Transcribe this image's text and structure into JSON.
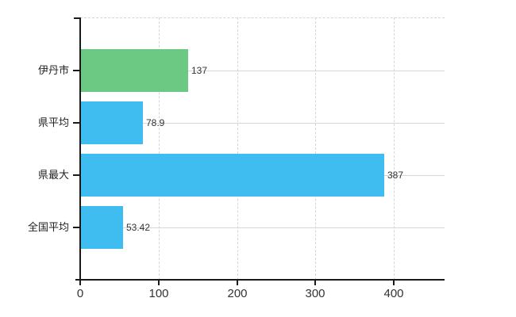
{
  "chart_data": {
    "type": "bar",
    "orientation": "horizontal",
    "title": "",
    "categories": [
      "伊丹市",
      "県平均",
      "県最大",
      "全国平均"
    ],
    "values": [
      137,
      78.9,
      387,
      53.42
    ],
    "value_labels": [
      "137",
      "78.9",
      "387",
      "53.42"
    ],
    "bar_colors": [
      "#6cc983",
      "#40bdf0",
      "#40bdf0",
      "#40bdf0"
    ],
    "x_axis": {
      "ticks": [
        0,
        100,
        200,
        300,
        400
      ],
      "tick_labels": [
        "0",
        "100",
        "200",
        "300",
        "400"
      ],
      "range": [
        0,
        464
      ]
    },
    "xlabel": "",
    "ylabel": "",
    "legend": false,
    "grid": {
      "vertical": true,
      "vertical_style": "dashed",
      "horizontal": true,
      "horizontal_style": "solid",
      "top_border_style": "dashed"
    },
    "colors": {
      "axis": "#1a1a1a",
      "text": "#333333",
      "grid_vertical": "#d8d4de",
      "grid_horizontal": "#cfdccf",
      "background": "#ffffff"
    }
  }
}
